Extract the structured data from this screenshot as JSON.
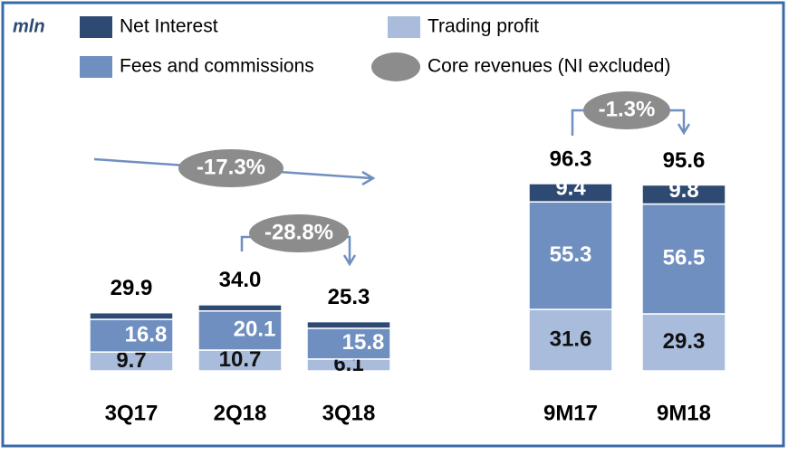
{
  "chart_data": {
    "type": "stacked_bar",
    "unit_label": "mln",
    "categories": [
      "3Q17",
      "2Q18",
      "3Q18",
      "9M17",
      "9M18"
    ],
    "series": [
      {
        "name": "Trading profit",
        "color": "#a9bcdc",
        "values": [
          9.7,
          10.7,
          6.1,
          31.6,
          29.3
        ]
      },
      {
        "name": "Fees and commissions",
        "color": "#6f8fc0",
        "values": [
          16.8,
          20.1,
          15.8,
          55.3,
          56.5
        ]
      },
      {
        "name": "Net Interest",
        "color": "#2e4a72",
        "values": [
          3.4,
          3.2,
          3.4,
          9.4,
          9.8
        ]
      }
    ],
    "core_revenues_legend": {
      "name": "Core revenues (NI excluded)",
      "color": "#8c8c8c"
    },
    "totals": [
      29.9,
      34.0,
      25.3,
      96.3,
      95.6
    ],
    "totals_labels": [
      "29.9",
      "34.0",
      "25.3",
      "96.3",
      "95.6"
    ],
    "annotations": [
      "-17.3%",
      "-28.8%",
      "-1.3%"
    ],
    "ylim": [
      0,
      100
    ]
  }
}
